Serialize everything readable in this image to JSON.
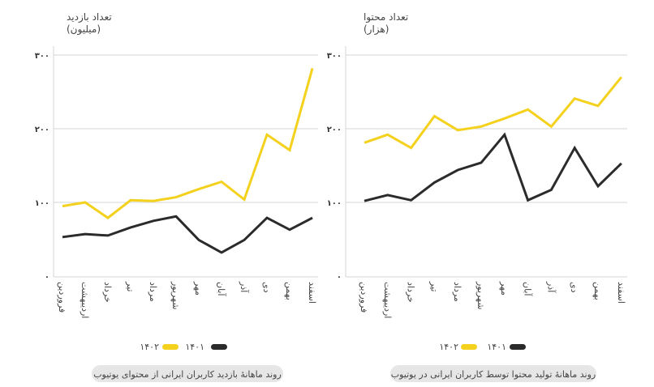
{
  "colors": {
    "y1401": "#2b2b2b",
    "y1402": "#f4d11d",
    "grid": "#d6d6d6",
    "pill": "#e6e6e6"
  },
  "chart_data": [
    {
      "type": "line",
      "ylabel": "تعداد بازدید",
      "yunit": "(میلیون)",
      "ylim": [
        0,
        300
      ],
      "yticks": [
        0,
        100,
        200,
        300
      ],
      "ytick_labels": [
        "۰",
        "۱۰۰",
        "۲۰۰",
        "۳۰۰"
      ],
      "categories": [
        "فروردین",
        "اردیبهشت",
        "خرداد",
        "تیر",
        "مرداد",
        "شهریور",
        "مهر",
        "آبان",
        "آذر",
        "دی",
        "بهمن",
        "اسفند"
      ],
      "grid": true,
      "legend_placement": "bottom",
      "series": [
        {
          "name": "۱۴۰۱",
          "values": [
            53,
            57,
            55,
            66,
            75,
            81,
            49,
            32,
            49,
            79,
            63,
            79
          ]
        },
        {
          "name": "۱۴۰۲",
          "values": [
            95,
            100,
            79,
            103,
            102,
            107,
            118,
            128,
            104,
            192,
            171,
            282
          ]
        }
      ],
      "caption": "روند ماهانهٔ بازدید کاربران ایرانی از محتوای یوتیوب"
    },
    {
      "type": "line",
      "ylabel": "تعداد محتوا",
      "yunit": "(هزار)",
      "ylim": [
        0,
        300
      ],
      "yticks": [
        0,
        100,
        200,
        300
      ],
      "ytick_labels": [
        "۰",
        "۱۰۰",
        "۲۰۰",
        "۳۰۰"
      ],
      "categories": [
        "فروردین",
        "اردیبهشت",
        "خرداد",
        "تیر",
        "مرداد",
        "شهریور",
        "مهر",
        "آبان",
        "آذر",
        "دی",
        "بهمن",
        "اسفند"
      ],
      "grid": true,
      "legend_placement": "bottom",
      "series": [
        {
          "name": "۱۴۰۱",
          "values": [
            102,
            110,
            103,
            127,
            144,
            154,
            192,
            103,
            117,
            174,
            122,
            153
          ]
        },
        {
          "name": "۱۴۰۲",
          "values": [
            181,
            192,
            174,
            217,
            198,
            203,
            214,
            226,
            203,
            241,
            231,
            270
          ]
        }
      ],
      "caption": "روند ماهانهٔ تولید محتوا توسط کاربران ایرانی در یوتیوب"
    }
  ]
}
